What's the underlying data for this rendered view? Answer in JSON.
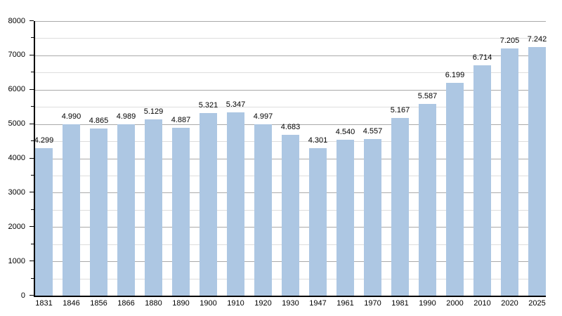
{
  "chart_data": {
    "type": "bar",
    "title": "",
    "xlabel": "",
    "ylabel": "",
    "legend": "none",
    "grid": true,
    "categories": [
      "1831",
      "1846",
      "1856",
      "1866",
      "1880",
      "1890",
      "1900",
      "1910",
      "1920",
      "1930",
      "1947",
      "1961",
      "1970",
      "1981",
      "1990",
      "2000",
      "2010",
      "2020",
      "2025"
    ],
    "values": [
      4299,
      4990,
      4865,
      4989,
      5129,
      4887,
      5321,
      5347,
      4997,
      4683,
      4301,
      4540,
      4557,
      5167,
      5587,
      6199,
      6714,
      7205,
      7242
    ],
    "value_labels": [
      "4.299",
      "4.990",
      "4.865",
      "4.989",
      "5.129",
      "4.887",
      "5.321",
      "5.347",
      "4.997",
      "4.683",
      "4.301",
      "4.540",
      "4.557",
      "5.167",
      "5.587",
      "6.199",
      "6.714",
      "7.205",
      "7.242"
    ],
    "ylim": [
      0,
      8000
    ],
    "y_major_step": 1000,
    "y_minor_step": 500,
    "y_tick_labels": [
      "0",
      "1000",
      "2000",
      "3000",
      "4000",
      "5000",
      "6000",
      "7000",
      "8000"
    ],
    "colors": {
      "bar_fill": "#adc7e3",
      "major_grid": "#aaaaaa",
      "minor_grid": "#dddddd",
      "axis": "#000000",
      "text": "#000000",
      "background": "#ffffff"
    }
  }
}
